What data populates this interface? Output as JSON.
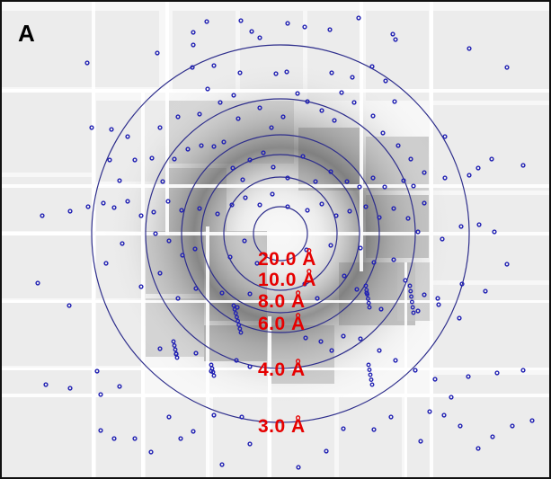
{
  "panel": {
    "label": "A"
  },
  "resolution_rings": [
    {
      "label": "20.0 Å"
    },
    {
      "label": "10.0 Å"
    },
    {
      "label": "8.0 Å"
    },
    {
      "label": "6.0 Å"
    },
    {
      "label": "4.0 Å"
    },
    {
      "label": "3.0 Å"
    }
  ],
  "colors": {
    "ring": "#2e2e8c",
    "spot": "#2323b4",
    "label": "#e60000",
    "frame": "#111111"
  }
}
